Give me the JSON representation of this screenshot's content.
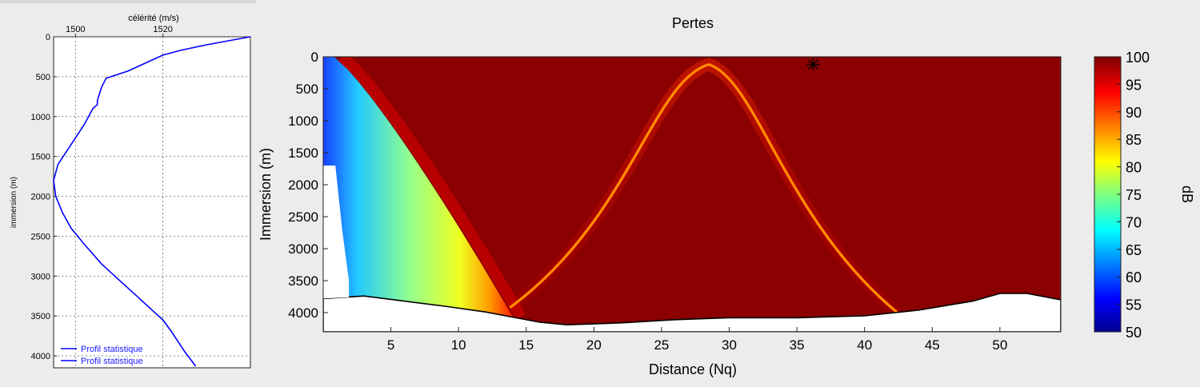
{
  "chart_data": [
    {
      "type": "line",
      "title": "",
      "xlabel": "célérité (m/s)",
      "ylabel": "immersion (m)",
      "x_ticks": [
        1500,
        1520
      ],
      "y_ticks": [
        0,
        500,
        1000,
        1500,
        2000,
        2500,
        3000,
        3500,
        4000
      ],
      "xlim": [
        1495,
        1540
      ],
      "ylim": [
        0,
        4150
      ],
      "y_reversed": true,
      "grid": true,
      "legend_position": "bottom-left",
      "legend": [
        "Profil statistique",
        "Profil statistique"
      ],
      "series": [
        {
          "name": "Profil statistique",
          "color": "#0000ff",
          "x": [
            1540,
            1530,
            1524,
            1520,
            1516,
            1512,
            1507,
            1506,
            1505,
            1505,
            1504,
            1502,
            1499,
            1496,
            1495,
            1495.5,
            1497,
            1499,
            1502,
            1506,
            1510,
            1514,
            1518,
            1520,
            1522,
            1525,
            1527.5
          ],
          "y": [
            0,
            100,
            170,
            230,
            330,
            430,
            520,
            630,
            800,
            850,
            900,
            1100,
            1350,
            1600,
            1800,
            2000,
            2200,
            2400,
            2600,
            2850,
            3050,
            3250,
            3450,
            3550,
            3700,
            3950,
            4130
          ]
        }
      ]
    },
    {
      "type": "heatmap",
      "title": "Pertes",
      "xlabel": "Distance (Nq)",
      "ylabel": "Immersion (m)",
      "x_ticks": [
        5,
        10,
        15,
        20,
        25,
        30,
        35,
        40,
        45,
        50
      ],
      "y_ticks": [
        0,
        500,
        1000,
        1500,
        2000,
        2500,
        3000,
        3500,
        4000
      ],
      "xlim": [
        0,
        54.5
      ],
      "ylim": [
        0,
        4300
      ],
      "y_reversed": true,
      "colorbar": {
        "label": "dB",
        "min": 50,
        "max": 100,
        "ticks": [
          50,
          55,
          60,
          65,
          70,
          75,
          80,
          85,
          90,
          95,
          100
        ],
        "colormap": "jet"
      },
      "source_marker": {
        "x": 36.2,
        "y": 120
      },
      "bottom_profile": {
        "x": [
          0,
          3,
          6,
          9,
          12,
          14,
          16,
          18,
          22,
          26,
          30,
          35,
          40,
          44,
          48,
          50,
          52,
          54.5
        ],
        "y": [
          3780,
          3740,
          3820,
          3900,
          3990,
          4070,
          4150,
          4190,
          4160,
          4110,
          4080,
          4080,
          4050,
          3960,
          3820,
          3700,
          3700,
          3800
        ]
      },
      "convergence_zone": {
        "apex_x": 28.5,
        "apex_y": 120,
        "left_end_x": 13.8,
        "right_end_x": 42.4,
        "end_y": 3920
      },
      "values_description_levels_db": {
        "direct_path_near_source": [
          50,
          65
        ],
        "shadow_zone": 100
      }
    }
  ]
}
